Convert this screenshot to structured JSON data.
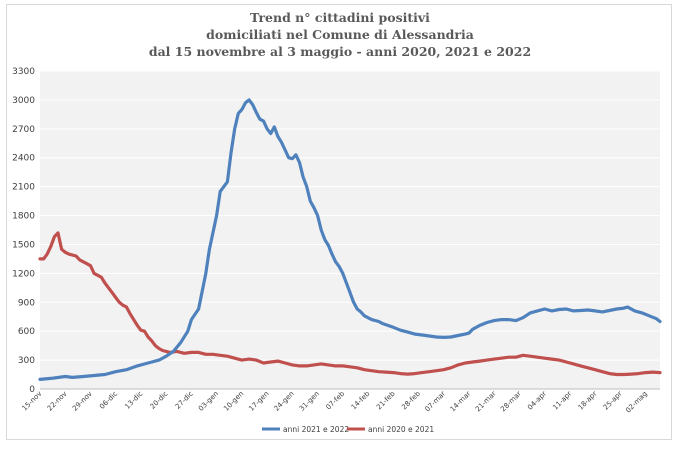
{
  "chart_data": {
    "type": "line",
    "title_lines": [
      "Trend n° cittadini positivi",
      "domiciliati nel Comune di Alessandria",
      "dal 15 novembre al 3 maggio - anni 2020, 2021 e 2022"
    ],
    "ylim": [
      0,
      3300
    ],
    "yticks": [
      0,
      300,
      600,
      900,
      1200,
      1500,
      1800,
      2100,
      2400,
      2700,
      3000,
      3300
    ],
    "xticks": [
      {
        "day": 0,
        "label": "15-nov"
      },
      {
        "day": 7,
        "label": "22-nov"
      },
      {
        "day": 14,
        "label": "29-nov"
      },
      {
        "day": 21,
        "label": "06-dic"
      },
      {
        "day": 28,
        "label": "13-dic"
      },
      {
        "day": 35,
        "label": "20-dic"
      },
      {
        "day": 42,
        "label": "27-dic"
      },
      {
        "day": 49,
        "label": "03-gen"
      },
      {
        "day": 56,
        "label": "10-gen"
      },
      {
        "day": 63,
        "label": "17-gen"
      },
      {
        "day": 70,
        "label": "24-gen"
      },
      {
        "day": 77,
        "label": "31-gen"
      },
      {
        "day": 84,
        "label": "07-feb"
      },
      {
        "day": 91,
        "label": "14-feb"
      },
      {
        "day": 98,
        "label": "21-feb"
      },
      {
        "day": 105,
        "label": "28-feb"
      },
      {
        "day": 112,
        "label": "07-mar"
      },
      {
        "day": 119,
        "label": "14-mar"
      },
      {
        "day": 126,
        "label": "21-mar"
      },
      {
        "day": 133,
        "label": "28-mar"
      },
      {
        "day": 140,
        "label": "04-apr"
      },
      {
        "day": 147,
        "label": "11-apr"
      },
      {
        "day": 154,
        "label": "18-apr"
      },
      {
        "day": 161,
        "label": "25-apr"
      },
      {
        "day": 168,
        "label": "02-mag"
      }
    ],
    "grid": true,
    "legend_position": "bottom",
    "series": [
      {
        "name": "anni 2021 e 2022",
        "color": "#4f81bd",
        "points": [
          [
            0,
            100
          ],
          [
            3,
            110
          ],
          [
            6,
            125
          ],
          [
            7,
            130
          ],
          [
            9,
            120
          ],
          [
            12,
            130
          ],
          [
            15,
            140
          ],
          [
            18,
            150
          ],
          [
            21,
            180
          ],
          [
            24,
            200
          ],
          [
            27,
            240
          ],
          [
            30,
            270
          ],
          [
            33,
            300
          ],
          [
            35,
            340
          ],
          [
            37,
            390
          ],
          [
            39,
            480
          ],
          [
            41,
            600
          ],
          [
            42,
            720
          ],
          [
            44,
            830
          ],
          [
            46,
            1200
          ],
          [
            47,
            1450
          ],
          [
            49,
            1800
          ],
          [
            50,
            2050
          ],
          [
            52,
            2150
          ],
          [
            53,
            2450
          ],
          [
            54,
            2700
          ],
          [
            55,
            2860
          ],
          [
            56,
            2900
          ],
          [
            57,
            2970
          ],
          [
            58,
            3000
          ],
          [
            59,
            2950
          ],
          [
            60,
            2870
          ],
          [
            61,
            2800
          ],
          [
            62,
            2780
          ],
          [
            63,
            2700
          ],
          [
            64,
            2650
          ],
          [
            65,
            2720
          ],
          [
            66,
            2620
          ],
          [
            67,
            2560
          ],
          [
            68,
            2480
          ],
          [
            69,
            2400
          ],
          [
            70,
            2390
          ],
          [
            71,
            2430
          ],
          [
            72,
            2350
          ],
          [
            73,
            2200
          ],
          [
            74,
            2100
          ],
          [
            75,
            1950
          ],
          [
            76,
            1880
          ],
          [
            77,
            1800
          ],
          [
            78,
            1650
          ],
          [
            79,
            1550
          ],
          [
            80,
            1490
          ],
          [
            81,
            1400
          ],
          [
            82,
            1320
          ],
          [
            83,
            1270
          ],
          [
            84,
            1200
          ],
          [
            85,
            1100
          ],
          [
            86,
            1000
          ],
          [
            87,
            900
          ],
          [
            88,
            830
          ],
          [
            89,
            800
          ],
          [
            90,
            760
          ],
          [
            92,
            720
          ],
          [
            94,
            700
          ],
          [
            95,
            680
          ],
          [
            98,
            640
          ],
          [
            100,
            610
          ],
          [
            102,
            590
          ],
          [
            104,
            570
          ],
          [
            106,
            560
          ],
          [
            108,
            550
          ],
          [
            110,
            540
          ],
          [
            112,
            535
          ],
          [
            114,
            540
          ],
          [
            116,
            555
          ],
          [
            118,
            570
          ],
          [
            119,
            580
          ],
          [
            120,
            620
          ],
          [
            122,
            660
          ],
          [
            124,
            690
          ],
          [
            126,
            710
          ],
          [
            128,
            720
          ],
          [
            130,
            720
          ],
          [
            132,
            710
          ],
          [
            134,
            740
          ],
          [
            136,
            790
          ],
          [
            138,
            810
          ],
          [
            140,
            830
          ],
          [
            142,
            810
          ],
          [
            144,
            825
          ],
          [
            146,
            830
          ],
          [
            148,
            810
          ],
          [
            150,
            815
          ],
          [
            152,
            820
          ],
          [
            154,
            810
          ],
          [
            156,
            800
          ],
          [
            158,
            815
          ],
          [
            160,
            830
          ],
          [
            162,
            840
          ],
          [
            163,
            850
          ],
          [
            165,
            810
          ],
          [
            167,
            790
          ],
          [
            169,
            760
          ],
          [
            171,
            730
          ],
          [
            172,
            700
          ]
        ]
      },
      {
        "name": "anni 2020 e 2021",
        "color": "#c0504d",
        "points": [
          [
            0,
            1350
          ],
          [
            1,
            1350
          ],
          [
            2,
            1400
          ],
          [
            3,
            1480
          ],
          [
            4,
            1580
          ],
          [
            5,
            1620
          ],
          [
            6,
            1450
          ],
          [
            7,
            1420
          ],
          [
            8,
            1400
          ],
          [
            10,
            1380
          ],
          [
            11,
            1340
          ],
          [
            12,
            1320
          ],
          [
            13,
            1300
          ],
          [
            14,
            1280
          ],
          [
            15,
            1200
          ],
          [
            16,
            1180
          ],
          [
            17,
            1160
          ],
          [
            18,
            1100
          ],
          [
            19,
            1050
          ],
          [
            20,
            1000
          ],
          [
            21,
            950
          ],
          [
            22,
            900
          ],
          [
            23,
            870
          ],
          [
            24,
            850
          ],
          [
            25,
            780
          ],
          [
            26,
            720
          ],
          [
            27,
            660
          ],
          [
            28,
            610
          ],
          [
            29,
            600
          ],
          [
            30,
            540
          ],
          [
            31,
            500
          ],
          [
            32,
            450
          ],
          [
            33,
            420
          ],
          [
            34,
            400
          ],
          [
            35,
            390
          ],
          [
            36,
            380
          ],
          [
            38,
            390
          ],
          [
            40,
            370
          ],
          [
            42,
            380
          ],
          [
            44,
            380
          ],
          [
            46,
            360
          ],
          [
            48,
            360
          ],
          [
            50,
            350
          ],
          [
            52,
            340
          ],
          [
            54,
            320
          ],
          [
            56,
            300
          ],
          [
            58,
            310
          ],
          [
            60,
            300
          ],
          [
            62,
            270
          ],
          [
            64,
            280
          ],
          [
            66,
            290
          ],
          [
            68,
            270
          ],
          [
            70,
            250
          ],
          [
            72,
            240
          ],
          [
            74,
            240
          ],
          [
            76,
            250
          ],
          [
            78,
            260
          ],
          [
            80,
            250
          ],
          [
            82,
            240
          ],
          [
            84,
            240
          ],
          [
            86,
            230
          ],
          [
            88,
            220
          ],
          [
            90,
            200
          ],
          [
            92,
            190
          ],
          [
            94,
            180
          ],
          [
            96,
            175
          ],
          [
            98,
            170
          ],
          [
            100,
            160
          ],
          [
            102,
            155
          ],
          [
            104,
            160
          ],
          [
            106,
            170
          ],
          [
            108,
            180
          ],
          [
            110,
            190
          ],
          [
            112,
            200
          ],
          [
            114,
            220
          ],
          [
            116,
            250
          ],
          [
            118,
            270
          ],
          [
            120,
            280
          ],
          [
            122,
            290
          ],
          [
            124,
            300
          ],
          [
            126,
            310
          ],
          [
            128,
            320
          ],
          [
            130,
            330
          ],
          [
            132,
            330
          ],
          [
            134,
            350
          ],
          [
            136,
            340
          ],
          [
            138,
            330
          ],
          [
            140,
            320
          ],
          [
            142,
            310
          ],
          [
            144,
            300
          ],
          [
            146,
            280
          ],
          [
            148,
            260
          ],
          [
            150,
            240
          ],
          [
            152,
            220
          ],
          [
            154,
            200
          ],
          [
            156,
            180
          ],
          [
            158,
            160
          ],
          [
            160,
            150
          ],
          [
            162,
            150
          ],
          [
            164,
            155
          ],
          [
            166,
            160
          ],
          [
            168,
            170
          ],
          [
            170,
            175
          ],
          [
            172,
            170
          ]
        ]
      }
    ]
  }
}
